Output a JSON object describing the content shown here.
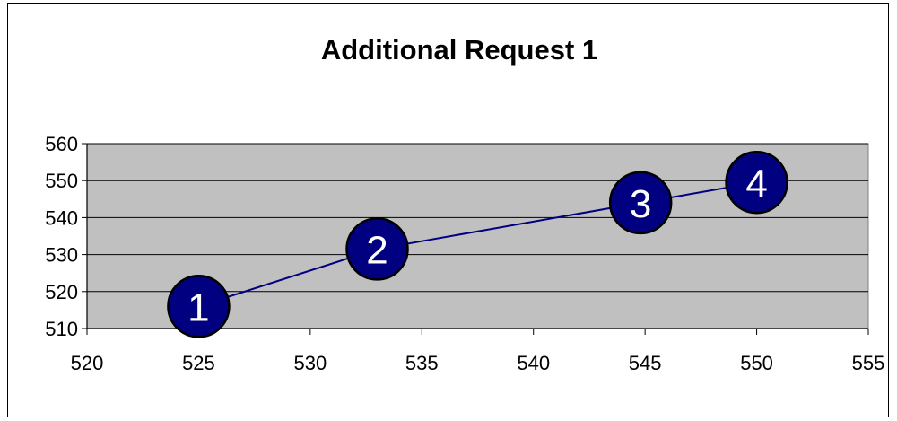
{
  "chart_data": {
    "type": "scatter",
    "title": "Additional Request 1",
    "xlabel": "",
    "ylabel": "",
    "xlim": [
      520,
      555
    ],
    "ylim": [
      510,
      560
    ],
    "xticks": [
      520,
      525,
      530,
      535,
      540,
      545,
      550,
      555
    ],
    "yticks": [
      510,
      520,
      530,
      540,
      550,
      560
    ],
    "grid": "horizontal",
    "legend": "none",
    "points": [
      {
        "label": "1",
        "x": 525,
        "y": 516
      },
      {
        "label": "2",
        "x": 533,
        "y": 531.5
      },
      {
        "label": "3",
        "x": 544.8,
        "y": 544
      },
      {
        "label": "4",
        "x": 550,
        "y": 549.5
      }
    ],
    "colors": {
      "plot_area": "#c0c0c0",
      "line": "#000080",
      "marker_fill": "#000080",
      "marker_text": "#ffffff"
    }
  }
}
